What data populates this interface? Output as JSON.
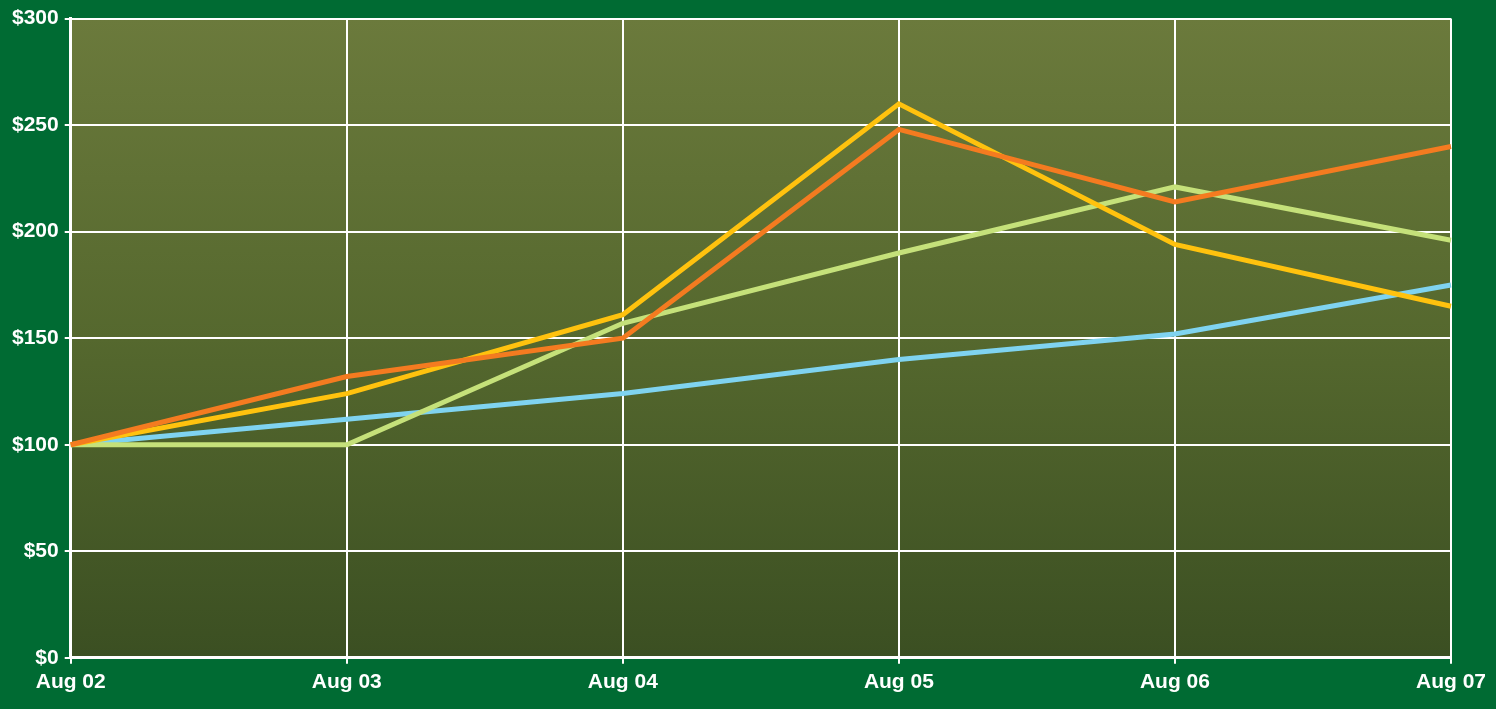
{
  "chart_data": {
    "type": "line",
    "categories": [
      "Aug 02",
      "Aug 03",
      "Aug 04",
      "Aug 05",
      "Aug 06",
      "Aug 07"
    ],
    "series": [
      {
        "color": "#f47b20",
        "values": [
          100,
          132,
          150,
          248,
          214,
          240
        ]
      },
      {
        "color": "#ffc20e",
        "values": [
          100,
          124,
          161,
          260,
          194,
          165
        ]
      },
      {
        "color": "#c5e17a",
        "values": [
          100,
          100,
          157,
          190,
          221,
          196
        ]
      },
      {
        "color": "#7fd3f0",
        "values": [
          100,
          112,
          124,
          140,
          152,
          175
        ]
      }
    ],
    "ylim": [
      0,
      300
    ],
    "yticks": [
      {
        "value": 0,
        "label": "$0"
      },
      {
        "value": 50,
        "label": "$50"
      },
      {
        "value": 100,
        "label": "$100"
      },
      {
        "value": 150,
        "label": "$150"
      },
      {
        "value": 200,
        "label": "$200"
      },
      {
        "value": 250,
        "label": "$250"
      },
      {
        "value": 300,
        "label": "$300"
      }
    ],
    "grid": true
  }
}
